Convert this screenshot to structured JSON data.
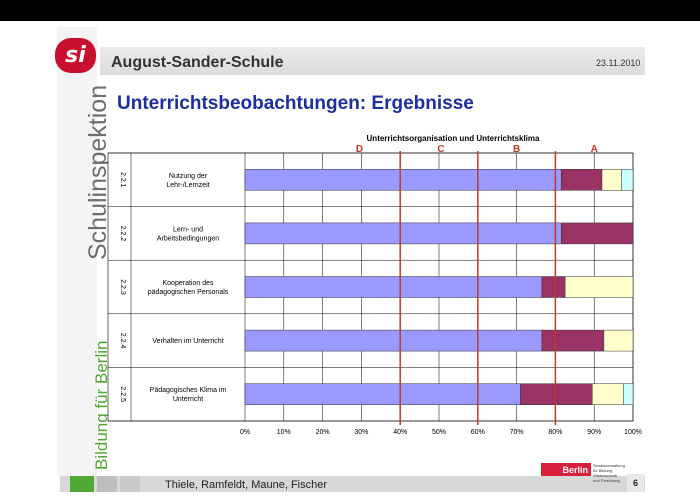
{
  "header": {
    "school": "August-Sander-Schule",
    "date": "23.11.2010",
    "title": "Unterrichtsbeobachtungen: Ergebnisse",
    "logo_text": "si"
  },
  "sidebar": {
    "vertical_title": "Schulinspektion",
    "vertical_subtitle": "Bildung für Berlin"
  },
  "footer": {
    "authors": "Thiele, Ramfeldt, Maune, Fischer",
    "berlin_label": "Berlin",
    "senate_text": "Senatsverwaltung für Bildung, Wissenschaft und Forschung",
    "page_number": "6"
  },
  "colors": {
    "series_blue": "#9999ff",
    "series_maroon": "#993366",
    "series_yellow": "#ffffcc",
    "series_cyan": "#ccffff",
    "threshold_red": "#c0392b",
    "title_blue": "#1c2fa0",
    "label_red": "#c0392b"
  },
  "chart_data": {
    "type": "bar",
    "orientation": "horizontal",
    "stacked": true,
    "title": "Unterrichtsorganisation und Unterrichtsklima",
    "categories": [
      {
        "code": "2.2.1",
        "label": "Nutzung der Lehr-/Lernzeit"
      },
      {
        "code": "2.2.2",
        "label": "Lern- und Arbeitsbedingungen"
      },
      {
        "code": "2.2.3",
        "label": "Kooperation des pädagogischen Personals"
      },
      {
        "code": "2.2.4",
        "label": "Verhalten im Unterricht"
      },
      {
        "code": "2.2.5",
        "label": "Pädagogisches Klima im Unterricht"
      }
    ],
    "series": [
      {
        "values": [
          81.5,
          81.5,
          76.5,
          76.5,
          71
        ]
      },
      {
        "values": [
          10.5,
          18.5,
          6,
          16,
          18.5
        ]
      },
      {
        "values": [
          5,
          0,
          17.5,
          7.5,
          8
        ]
      },
      {
        "values": [
          3,
          0,
          0,
          0,
          2.5
        ]
      }
    ],
    "xlim": [
      0,
      100
    ],
    "xticks": [
      "0%",
      "10%",
      "20%",
      "30%",
      "40%",
      "50%",
      "60%",
      "70%",
      "80%",
      "90%",
      "100%"
    ],
    "grid": true,
    "thresholds": [
      {
        "label": "D",
        "value": 40
      },
      {
        "label": "C",
        "value": 60
      },
      {
        "label": "B",
        "value": 80
      }
    ],
    "zone_labels": [
      {
        "label": "D",
        "value": 29.5
      },
      {
        "label": "C",
        "value": 50.5
      },
      {
        "label": "B",
        "value": 70
      },
      {
        "label": "A",
        "value": 90
      }
    ]
  }
}
